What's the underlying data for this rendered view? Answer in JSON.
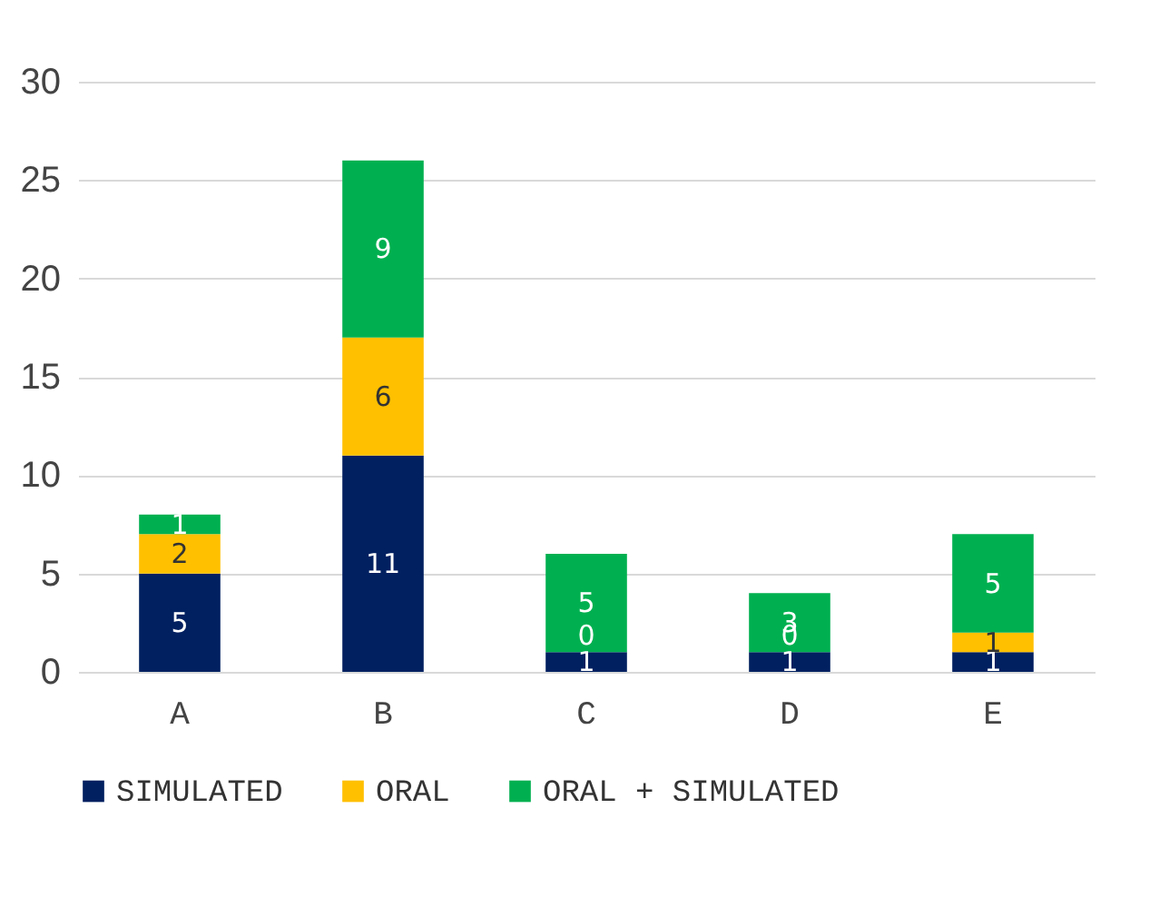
{
  "chart_data": {
    "type": "bar",
    "stacked": true,
    "categories": [
      "A",
      "B",
      "C",
      "D",
      "E"
    ],
    "series": [
      {
        "name": "SIMULATED",
        "color": "#002060",
        "values": [
          5,
          11,
          1,
          1,
          1
        ]
      },
      {
        "name": "ORAL",
        "color": "#ffc000",
        "values": [
          2,
          6,
          0,
          0,
          1
        ]
      },
      {
        "name": "ORAL + SIMULATED",
        "color": "#00b050",
        "values": [
          1,
          9,
          5,
          3,
          5
        ]
      }
    ],
    "ylim": [
      0,
      30
    ],
    "yticks": [
      0,
      5,
      10,
      15,
      20,
      25,
      30
    ],
    "grid": "y",
    "legend": "bottom",
    "data_labels": true
  }
}
